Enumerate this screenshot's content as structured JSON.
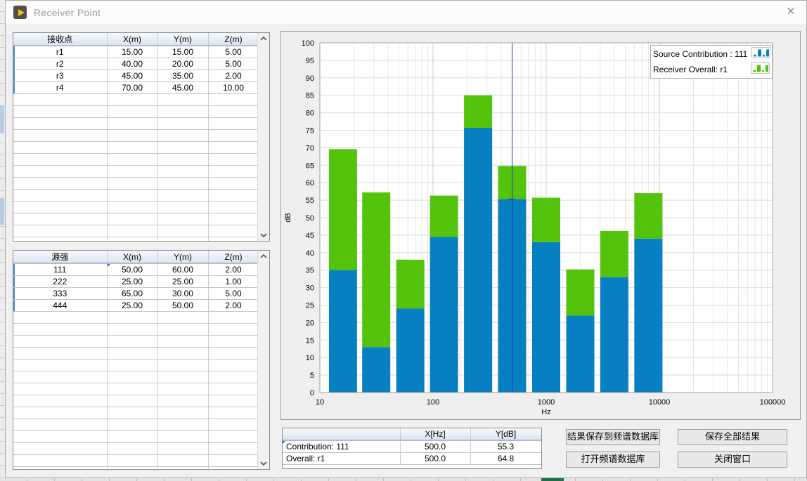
{
  "window": {
    "title": "Receiver Point",
    "close_label": "✕"
  },
  "receiver_table": {
    "headers": [
      "接收点",
      "X(m)",
      "Y(m)",
      "Z(m)"
    ],
    "rows": [
      [
        "r1",
        "15.00",
        "15.00",
        "5.00"
      ],
      [
        "r2",
        "40.00",
        "20.00",
        "5.00"
      ],
      [
        "r3",
        "45.00",
        "35.00",
        "2.00"
      ],
      [
        "r4",
        "70.00",
        "45.00",
        "10.00"
      ]
    ],
    "empty_rows": 13
  },
  "source_table": {
    "headers": [
      "源强",
      "X(m)",
      "Y(m)",
      "Z(m)"
    ],
    "rows": [
      [
        "111",
        "50.00",
        "60.00",
        "2.00"
      ],
      [
        "222",
        "25.00",
        "25.00",
        "1.00"
      ],
      [
        "333",
        "65.00",
        "30.00",
        "5.00"
      ],
      [
        "444",
        "25.00",
        "50.00",
        "2.00"
      ]
    ],
    "empty_rows": 14,
    "selected_cell": [
      0,
      1
    ]
  },
  "chart_data": {
    "type": "bar",
    "stacked": true,
    "x_scale": "log",
    "xlim": [
      10,
      100000
    ],
    "xticks": [
      "10",
      "100",
      "1000",
      "10000",
      "100000"
    ],
    "xlabel": "Hz",
    "ylabel": "dB",
    "ylim": [
      0,
      100
    ],
    "ytick_step": 5,
    "categories": [
      16,
      31.5,
      63,
      125,
      250,
      500,
      1000,
      2000,
      4000,
      8000
    ],
    "series": [
      {
        "name": "Source Contribution : 111",
        "color": "#0780C1",
        "values": [
          35,
          13,
          24,
          44.5,
          75.7,
          55.3,
          43,
          22,
          33,
          44
        ]
      },
      {
        "name": "Receiver Overall: r1",
        "color": "#54C30B",
        "values": [
          69.6,
          57.2,
          38,
          56.3,
          85,
          64.8,
          55.7,
          35.2,
          46.2,
          57
        ]
      }
    ],
    "legend": [
      "Source Contribution : 111",
      "Receiver Overall: r1"
    ],
    "legend_position": "top-right",
    "grid": true,
    "cursor": {
      "x": 500,
      "y": 55.3,
      "color": "#2233C0"
    }
  },
  "readout_table": {
    "headers": [
      "",
      "X[Hz]",
      "Y[dB]"
    ],
    "rows": [
      [
        "Contribution: 111",
        "500.0",
        "55.3"
      ],
      [
        "Overall: r1",
        "500.0",
        "64.8"
      ]
    ],
    "empty_rows": 0,
    "selected_cell": [
      0,
      0
    ]
  },
  "buttons": {
    "save_to_db": "结果保存到频谱数据库",
    "save_all": "保存全部结果",
    "open_db": "打开频谱数据库",
    "close_window": "关闭窗口"
  }
}
